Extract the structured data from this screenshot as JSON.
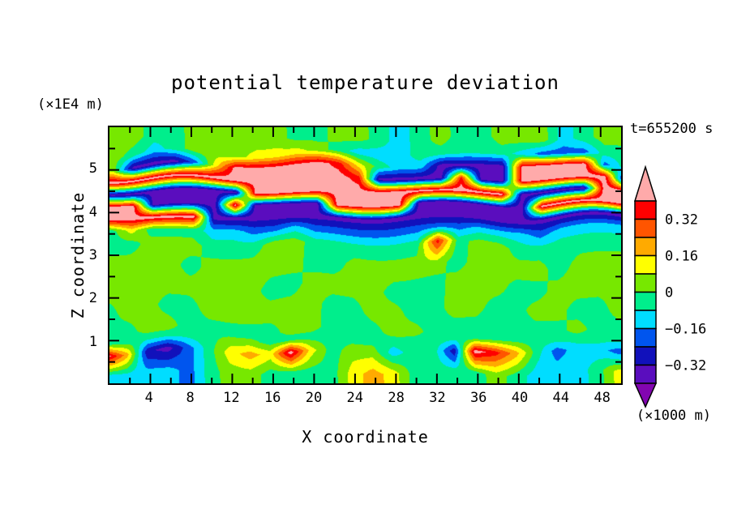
{
  "page": {
    "background": "#FFFFFF",
    "frame_color": "#000000"
  },
  "chart_data": {
    "type": "heatmap",
    "title": "potential temperature deviation",
    "time_label": "t=655200 s",
    "xlabel": "X coordinate",
    "x_unit_label": "(×1000 m)",
    "zlabel": "Z coordinate",
    "z_unit_label": "(×1E4 m)",
    "x_range": [
      0,
      50
    ],
    "z_range": [
      0,
      6
    ],
    "x_major_ticks": [
      4,
      8,
      12,
      16,
      20,
      24,
      28,
      32,
      36,
      40,
      44,
      48
    ],
    "x_minor_tick_step": 2,
    "z_major_ticks": [
      1,
      2,
      3,
      4,
      5
    ],
    "z_minor_tick_step": 0.5,
    "grid_lines": "off",
    "legend_position": "right-colorbar",
    "colorbar": {
      "boundaries": [
        -0.4,
        -0.32,
        -0.24,
        -0.16,
        -0.08,
        0,
        0.08,
        0.16,
        0.24,
        0.32,
        0.4
      ],
      "labeled_boundaries": [
        {
          "value": 0.32,
          "label": "0.32"
        },
        {
          "value": 0.16,
          "label": "0.16"
        },
        {
          "value": 0,
          "label": "0"
        },
        {
          "value": -0.16,
          "label": "−0.16"
        },
        {
          "value": -0.32,
          "label": "−0.32"
        }
      ],
      "colors_top_to_bottom": [
        "#FFAAAA",
        "#FF0000",
        "#FF5500",
        "#FFAA00",
        "#FFFF00",
        "#77E800",
        "#00EE8C",
        "#00DDFF",
        "#0055EE",
        "#1111BB",
        "#5A0DBE",
        "#8205B0"
      ],
      "over_color": "#FFAAAA",
      "under_color": "#8205B0",
      "arrow_ends": true
    },
    "grid": {
      "x": [
        0,
        2,
        4,
        6,
        8,
        10,
        12,
        14,
        16,
        18,
        20,
        22,
        24,
        26,
        28,
        30,
        32,
        34,
        36,
        38,
        40,
        42,
        44,
        46,
        48,
        50
      ],
      "z": [
        5.75,
        5.4,
        5.1,
        4.8,
        4.5,
        4.2,
        3.9,
        3.6,
        3.25,
        2.75,
        2.25,
        1.75,
        1.25,
        1.05,
        0.75,
        0.25
      ],
      "values": [
        [
          0.04,
          0.04,
          -0.04,
          -0.04,
          0.04,
          0.04,
          0.04,
          0.04,
          0.04,
          -0.04,
          -0.04,
          0.04,
          0.04,
          -0.04,
          -0.12,
          -0.04,
          0.04,
          -0.04,
          -0.04,
          0.04,
          0.04,
          0.04,
          -0.12,
          -0.04,
          0.04,
          0.04
        ],
        [
          0.04,
          -0.04,
          -0.12,
          -0.04,
          0.04,
          0.04,
          0.04,
          0.12,
          0.12,
          0.12,
          0.04,
          -0.04,
          -0.12,
          -0.12,
          -0.12,
          -0.04,
          -0.04,
          -0.04,
          -0.04,
          -0.04,
          -0.12,
          -0.2,
          -0.2,
          -0.2,
          -0.04,
          -0.04
        ],
        [
          0.04,
          -0.36,
          -0.36,
          -0.36,
          -0.2,
          0.12,
          0.45,
          0.45,
          0.45,
          0.45,
          0.45,
          0.36,
          0.12,
          -0.04,
          -0.12,
          -0.12,
          -0.36,
          -0.36,
          -0.36,
          -0.36,
          0.45,
          0.45,
          0.45,
          0.45,
          -0.2,
          -0.04
        ],
        [
          0.45,
          0.45,
          0.45,
          0.45,
          0.45,
          0.45,
          0.45,
          0.45,
          0.45,
          0.45,
          0.45,
          0.45,
          0.36,
          -0.36,
          -0.36,
          -0.36,
          -0.36,
          0.36,
          -0.36,
          -0.36,
          0.45,
          0.45,
          0.45,
          0.45,
          0.45,
          -0.36
        ],
        [
          -0.36,
          -0.36,
          -0.36,
          -0.36,
          -0.36,
          -0.36,
          -0.36,
          0.45,
          0.45,
          0.45,
          0.45,
          0.45,
          0.45,
          0.45,
          0.45,
          0.45,
          0.45,
          0.45,
          0.45,
          0.45,
          -0.36,
          -0.36,
          -0.36,
          -0.36,
          0.45,
          0.45
        ],
        [
          0.45,
          0.45,
          -0.36,
          -0.36,
          -0.36,
          -0.36,
          0.45,
          -0.36,
          -0.36,
          -0.36,
          -0.36,
          0.45,
          0.45,
          0.45,
          0.45,
          -0.36,
          -0.36,
          -0.36,
          -0.36,
          -0.36,
          -0.36,
          0.45,
          0.45,
          0.45,
          0.45,
          0.45
        ],
        [
          0.45,
          0.45,
          0.45,
          0.45,
          0.45,
          -0.36,
          -0.36,
          -0.36,
          -0.36,
          -0.36,
          -0.36,
          -0.36,
          -0.36,
          -0.36,
          -0.36,
          -0.36,
          -0.36,
          -0.36,
          -0.36,
          -0.36,
          -0.36,
          -0.36,
          -0.36,
          -0.36,
          -0.36,
          -0.36
        ],
        [
          -0.04,
          0.12,
          -0.04,
          -0.04,
          -0.04,
          -0.12,
          -0.12,
          -0.2,
          -0.2,
          -0.12,
          -0.2,
          -0.2,
          -0.2,
          -0.2,
          -0.2,
          -0.2,
          -0.2,
          -0.2,
          -0.12,
          -0.12,
          -0.12,
          -0.2,
          -0.12,
          -0.12,
          -0.12,
          -0.12
        ],
        [
          -0.04,
          -0.04,
          0.04,
          0.04,
          0.04,
          -0.04,
          -0.04,
          -0.04,
          0.04,
          0.04,
          -0.04,
          -0.04,
          -0.04,
          -0.04,
          -0.04,
          -0.04,
          0.36,
          -0.04,
          0.04,
          0.04,
          -0.04,
          -0.04,
          -0.04,
          -0.04,
          -0.04,
          -0.04
        ],
        [
          0.04,
          0.04,
          0.04,
          0.04,
          -0.04,
          0.04,
          0.04,
          0.04,
          0.04,
          0.04,
          -0.04,
          -0.04,
          0.04,
          0.04,
          0.04,
          0.04,
          0.04,
          -0.04,
          0.04,
          0.04,
          0.04,
          0.04,
          -0.04,
          0.04,
          0.04,
          0.04
        ],
        [
          0.04,
          0.04,
          0.04,
          0.04,
          0.04,
          0.04,
          0.04,
          0.04,
          -0.04,
          -0.04,
          0.04,
          0.04,
          0.04,
          0.04,
          -0.04,
          -0.04,
          -0.04,
          0.04,
          0.04,
          0.04,
          -0.04,
          -0.04,
          0.04,
          0.04,
          0.04,
          0.04
        ],
        [
          -0.04,
          0.04,
          0.04,
          -0.04,
          -0.04,
          0.04,
          0.04,
          0.04,
          0.04,
          0.04,
          0.04,
          -0.04,
          -0.04,
          0.04,
          0.04,
          -0.04,
          -0.04,
          0.04,
          0.04,
          -0.04,
          -0.04,
          0.04,
          0.04,
          -0.04,
          -0.04,
          0.04
        ],
        [
          -0.04,
          -0.04,
          0.04,
          0.04,
          -0.04,
          -0.04,
          -0.04,
          -0.04,
          -0.04,
          0.04,
          0.04,
          -0.04,
          -0.04,
          -0.04,
          0.04,
          0.04,
          -0.04,
          -0.04,
          -0.04,
          -0.04,
          -0.04,
          -0.04,
          -0.04,
          0.04,
          -0.04,
          -0.04
        ],
        [
          -0.04,
          -0.04,
          -0.04,
          -0.04,
          -0.04,
          -0.04,
          0.04,
          0.04,
          -0.04,
          -0.04,
          -0.04,
          -0.04,
          -0.04,
          -0.04,
          -0.04,
          -0.04,
          -0.04,
          -0.04,
          -0.04,
          -0.04,
          -0.04,
          -0.04,
          -0.04,
          -0.04,
          -0.04,
          -0.04
        ],
        [
          0.45,
          0.2,
          -0.3,
          -0.36,
          -0.2,
          -0.04,
          0.12,
          0.2,
          0.12,
          0.45,
          0.12,
          -0.04,
          0.04,
          0.04,
          -0.12,
          -0.04,
          -0.04,
          -0.3,
          0.45,
          0.36,
          0.2,
          -0.04,
          -0.2,
          -0.12,
          -0.12,
          -0.2
        ],
        [
          -0.12,
          -0.12,
          -0.12,
          -0.12,
          -0.2,
          -0.04,
          0.04,
          0.04,
          -0.04,
          -0.04,
          -0.04,
          -0.04,
          0.12,
          0.2,
          0.12,
          -0.04,
          -0.04,
          -0.04,
          -0.04,
          0.04,
          -0.04,
          -0.12,
          -0.12,
          -0.12,
          -0.04,
          0.12
        ]
      ]
    }
  }
}
